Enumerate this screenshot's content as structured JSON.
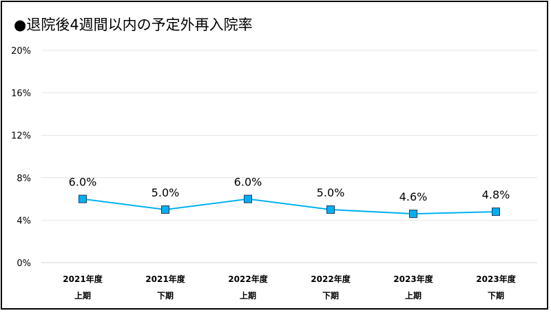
{
  "chart_data": {
    "type": "line",
    "title": "●退院後4週間以内の予定外再入院率",
    "categories": [
      [
        "2021年度",
        "上期"
      ],
      [
        "2021年度",
        "下期"
      ],
      [
        "2022年度",
        "上期"
      ],
      [
        "2022年度",
        "下期"
      ],
      [
        "2023年度",
        "上期"
      ],
      [
        "2023年度",
        "下期"
      ]
    ],
    "series": [
      {
        "values": [
          6.0,
          5.0,
          6.0,
          5.0,
          4.6,
          4.8
        ],
        "data_labels": [
          "6.0%",
          "5.0%",
          "6.0%",
          "5.0%",
          "4.6%",
          "4.8%"
        ],
        "color": "#00B0F0",
        "marker": "square"
      }
    ],
    "yticks": [
      "0%",
      "4%",
      "8%",
      "12%",
      "16%",
      "20%"
    ],
    "ylim": [
      0,
      20
    ],
    "grid": true,
    "legend": "none",
    "xlabel": "",
    "ylabel": ""
  }
}
